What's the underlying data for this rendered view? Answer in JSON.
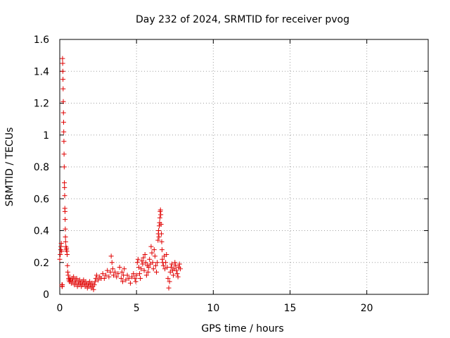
{
  "chart_data": {
    "type": "scatter",
    "title": "Day 232 of 2024, SRMTID for receiver pvog",
    "xlabel": "GPS time / hours",
    "ylabel": "SRMTID / TECUs",
    "xlim": [
      0,
      24
    ],
    "ylim": [
      0,
      1.6
    ],
    "xticks": [
      0,
      5,
      10,
      15,
      20
    ],
    "yticks": [
      0,
      0.2,
      0.4,
      0.6,
      0.8,
      1,
      1.2,
      1.4,
      1.6
    ],
    "grid": true,
    "marker": "plus",
    "color": "#e00000",
    "series": [
      {
        "x": [
          0.0,
          0.03,
          0.06,
          0.08,
          0.1,
          0.12,
          0.14,
          0.15,
          0.16,
          0.17,
          0.18,
          0.19,
          0.2,
          0.21,
          0.22,
          0.23,
          0.24,
          0.25,
          0.26,
          0.27,
          0.28,
          0.29,
          0.3,
          0.31,
          0.32,
          0.33,
          0.34,
          0.35,
          0.36,
          0.37,
          0.38,
          0.4,
          0.42,
          0.44,
          0.46,
          0.48,
          0.5,
          0.52,
          0.55,
          0.58,
          0.6,
          0.63,
          0.66,
          0.7,
          0.75,
          0.8,
          0.85,
          0.9,
          0.95,
          1.0,
          1.05,
          1.1,
          1.15,
          1.2,
          1.25,
          1.3,
          1.35,
          1.4,
          1.45,
          1.5,
          1.55,
          1.6,
          1.65,
          1.7,
          1.75,
          1.8,
          1.85,
          1.9,
          1.95,
          2.0,
          2.05,
          2.1,
          2.15,
          2.2,
          2.25,
          2.3,
          2.35,
          2.4,
          2.5,
          2.6,
          2.7,
          2.8,
          2.9,
          3.0,
          3.1,
          3.2,
          3.3,
          3.35,
          3.4,
          3.45,
          3.5,
          3.6,
          3.7,
          3.8,
          3.9,
          4.0,
          4.05,
          4.1,
          4.15,
          4.2,
          4.3,
          4.4,
          4.5,
          4.6,
          4.7,
          4.8,
          4.9,
          4.95,
          5.0,
          5.05,
          5.1,
          5.15,
          5.2,
          5.25,
          5.3,
          5.35,
          5.4,
          5.45,
          5.5,
          5.55,
          5.6,
          5.65,
          5.7,
          5.75,
          5.8,
          5.85,
          5.9,
          5.95,
          6.0,
          6.05,
          6.1,
          6.15,
          6.2,
          6.25,
          6.3,
          6.35,
          6.4,
          6.42,
          6.44,
          6.46,
          6.48,
          6.5,
          6.52,
          6.54,
          6.56,
          6.58,
          6.6,
          6.62,
          6.64,
          6.66,
          6.68,
          6.7,
          6.75,
          6.8,
          6.85,
          6.9,
          6.95,
          7.0,
          7.05,
          7.1,
          7.15,
          7.2,
          7.25,
          7.3,
          7.35,
          7.4,
          7.45,
          7.5,
          7.55,
          7.6,
          7.65,
          7.7,
          7.75,
          7.8,
          7.85
        ],
        "y": [
          0.22,
          0.25,
          0.28,
          0.3,
          0.32,
          0.27,
          0.06,
          0.05,
          0.05,
          0.06,
          1.48,
          1.45,
          1.4,
          1.35,
          1.29,
          1.21,
          1.14,
          1.08,
          1.02,
          0.96,
          0.88,
          0.8,
          0.7,
          0.67,
          0.62,
          0.54,
          0.52,
          0.47,
          0.41,
          0.36,
          0.33,
          0.3,
          0.28,
          0.29,
          0.27,
          0.25,
          0.18,
          0.14,
          0.12,
          0.1,
          0.09,
          0.08,
          0.1,
          0.09,
          0.07,
          0.1,
          0.08,
          0.11,
          0.06,
          0.09,
          0.07,
          0.1,
          0.05,
          0.08,
          0.06,
          0.09,
          0.07,
          0.05,
          0.08,
          0.06,
          0.09,
          0.07,
          0.05,
          0.08,
          0.06,
          0.04,
          0.07,
          0.05,
          0.08,
          0.06,
          0.04,
          0.07,
          0.05,
          0.03,
          0.06,
          0.08,
          0.1,
          0.12,
          0.09,
          0.11,
          0.1,
          0.13,
          0.1,
          0.12,
          0.15,
          0.11,
          0.14,
          0.24,
          0.2,
          0.16,
          0.12,
          0.14,
          0.11,
          0.13,
          0.17,
          0.1,
          0.14,
          0.08,
          0.12,
          0.16,
          0.09,
          0.12,
          0.1,
          0.07,
          0.11,
          0.13,
          0.1,
          0.08,
          0.12,
          0.2,
          0.22,
          0.17,
          0.13,
          0.1,
          0.16,
          0.21,
          0.19,
          0.23,
          0.15,
          0.25,
          0.2,
          0.12,
          0.18,
          0.14,
          0.17,
          0.22,
          0.19,
          0.3,
          0.26,
          0.2,
          0.16,
          0.28,
          0.24,
          0.18,
          0.14,
          0.2,
          0.34,
          0.38,
          0.4,
          0.36,
          0.43,
          0.45,
          0.48,
          0.52,
          0.53,
          0.5,
          0.44,
          0.38,
          0.33,
          0.28,
          0.22,
          0.2,
          0.18,
          0.24,
          0.16,
          0.2,
          0.25,
          0.17,
          0.1,
          0.04,
          0.08,
          0.14,
          0.17,
          0.19,
          0.15,
          0.12,
          0.16,
          0.2,
          0.18,
          0.15,
          0.13,
          0.11,
          0.17,
          0.19,
          0.16
        ]
      }
    ]
  }
}
